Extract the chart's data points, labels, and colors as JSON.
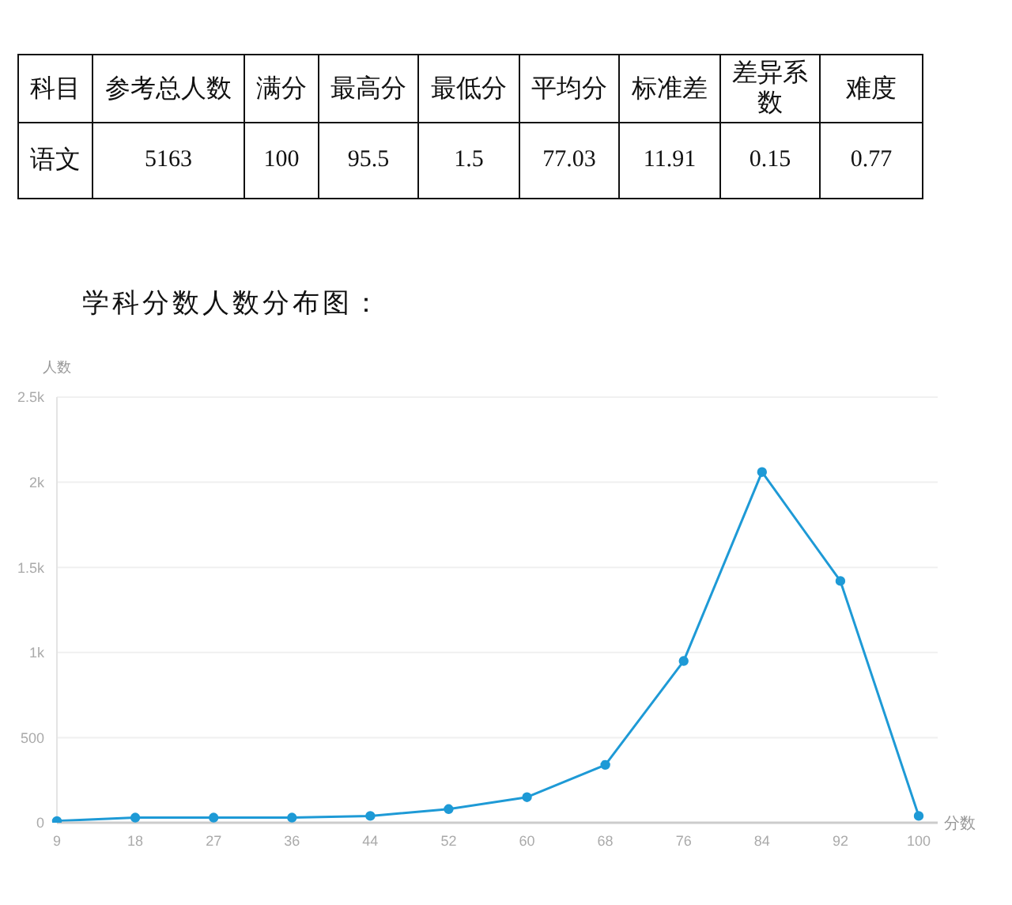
{
  "chart_data": [
    {
      "type": "heatmap",
      "ylabel": "科目",
      "categories": [
        "参考总人数",
        "满分",
        "最高分",
        "最低分",
        "平均分",
        "标准差",
        "差异系数",
        "难度"
      ],
      "y_categories": [
        "语文"
      ],
      "cells": [
        [
          5163,
          100,
          95.5,
          1.5,
          77.03,
          11.91,
          0.15,
          0.77
        ]
      ],
      "data_labels": true
    },
    {
      "type": "line",
      "title": "学科分数人数分布图：",
      "xlabel": "分数",
      "ylabel": "人数",
      "categories": [
        "9",
        "18",
        "27",
        "36",
        "44",
        "52",
        "60",
        "68",
        "76",
        "84",
        "92",
        "100"
      ],
      "series": [
        {
          "color": "#1e9ad6",
          "values": [
            10,
            30,
            30,
            30,
            40,
            80,
            150,
            340,
            950,
            2060,
            1420,
            40
          ]
        }
      ],
      "ylim": [
        0,
        2500
      ],
      "yticks": [
        0,
        500,
        {
          "value": 1000,
          "label": "1k"
        },
        {
          "value": 1500,
          "label": "1.5k"
        },
        {
          "value": 2000,
          "label": "2k"
        },
        {
          "value": 2500,
          "label": "2.5k"
        }
      ],
      "grid": "y",
      "marker": "circle",
      "line_style": "solid"
    }
  ]
}
